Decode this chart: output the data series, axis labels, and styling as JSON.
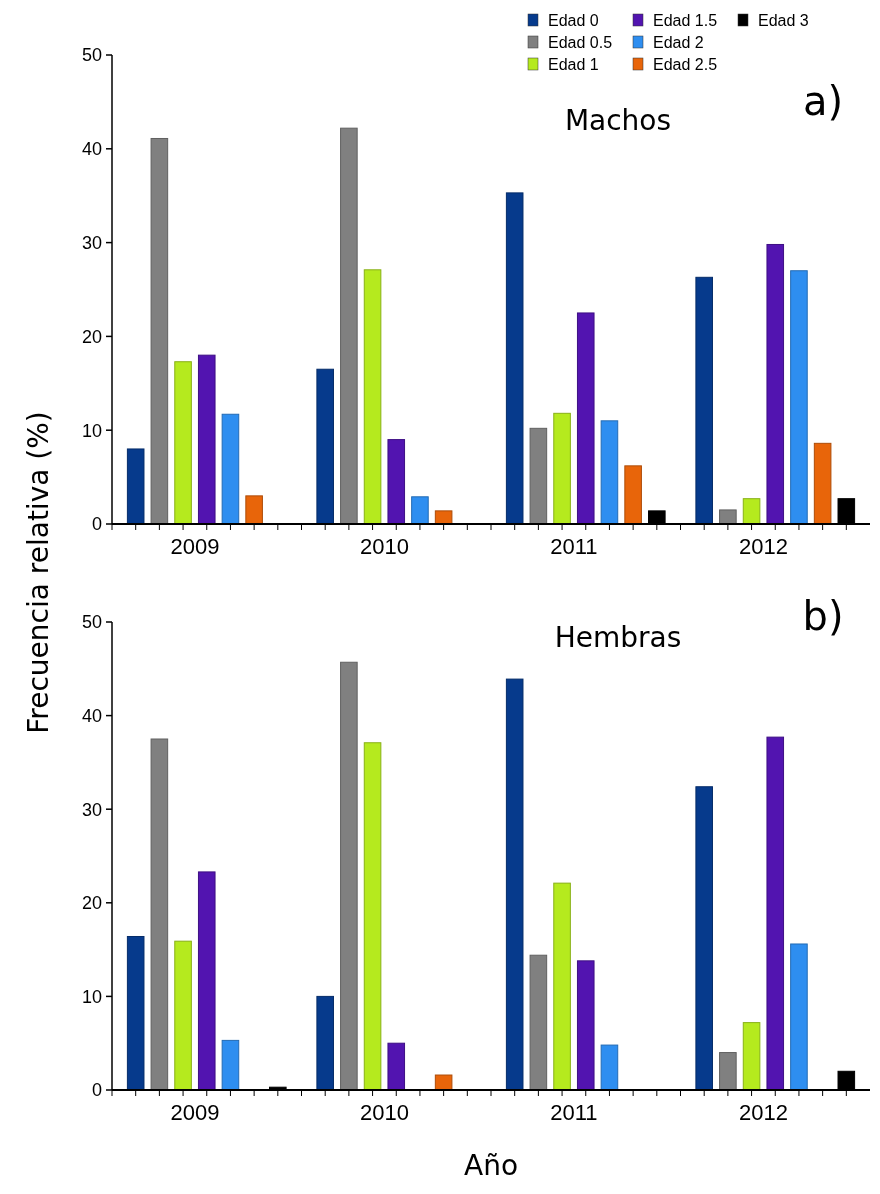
{
  "chart_data": [
    {
      "type": "bar",
      "title": "Machos",
      "ylabel": "Frecuencia relativa (%)",
      "annotations": [
        "a)"
      ],
      "categories": [
        "2009",
        "2010",
        "2011",
        "2012"
      ],
      "ylim": [
        0,
        50
      ],
      "yticks": [
        0,
        10,
        20,
        30,
        40,
        50
      ],
      "legend": "top right",
      "grid": false,
      "series": [
        {
          "name": "Edad 0",
          "color": "#063a8c",
          "values": [
            8.0,
            16.5,
            35.3,
            26.3
          ]
        },
        {
          "name": "Edad 0.5",
          "color": "#808080",
          "values": [
            41.1,
            42.2,
            10.2,
            1.5
          ]
        },
        {
          "name": "Edad 1",
          "color": "#b5ea1e",
          "values": [
            17.3,
            27.1,
            11.8,
            2.7
          ]
        },
        {
          "name": "Edad 1.5",
          "color": "#5214b0",
          "values": [
            18.0,
            9.0,
            22.5,
            29.8
          ]
        },
        {
          "name": "Edad 2",
          "color": "#2e8ef0",
          "values": [
            11.7,
            2.9,
            11.0,
            27.0
          ]
        },
        {
          "name": "Edad 2.5",
          "color": "#e8650a",
          "values": [
            3.0,
            1.4,
            6.2,
            8.6
          ]
        },
        {
          "name": "Edad 3",
          "color": "#000000",
          "values": [
            0,
            0,
            1.4,
            2.7
          ]
        }
      ]
    },
    {
      "type": "bar",
      "title": "Hembras",
      "xlabel": "Año",
      "annotations": [
        "b)"
      ],
      "categories": [
        "2009",
        "2010",
        "2011",
        "2012"
      ],
      "ylim": [
        0,
        50
      ],
      "yticks": [
        0,
        10,
        20,
        30,
        40,
        50
      ],
      "grid": false,
      "series": [
        {
          "color": "#063a8c",
          "values": [
            16.4,
            10.0,
            43.9,
            32.4
          ]
        },
        {
          "color": "#808080",
          "values": [
            37.5,
            45.7,
            14.4,
            4.0
          ]
        },
        {
          "color": "#b5ea1e",
          "values": [
            15.9,
            37.1,
            22.1,
            7.2
          ]
        },
        {
          "color": "#5214b0",
          "values": [
            23.3,
            5.0,
            13.8,
            37.7
          ]
        },
        {
          "color": "#2e8ef0",
          "values": [
            5.3,
            0,
            4.8,
            15.6
          ]
        },
        {
          "color": "#e8650a",
          "values": [
            0,
            1.6,
            0,
            0
          ]
        },
        {
          "color": "#000000",
          "values": [
            0.3,
            0,
            0,
            2.0
          ]
        }
      ]
    }
  ]
}
